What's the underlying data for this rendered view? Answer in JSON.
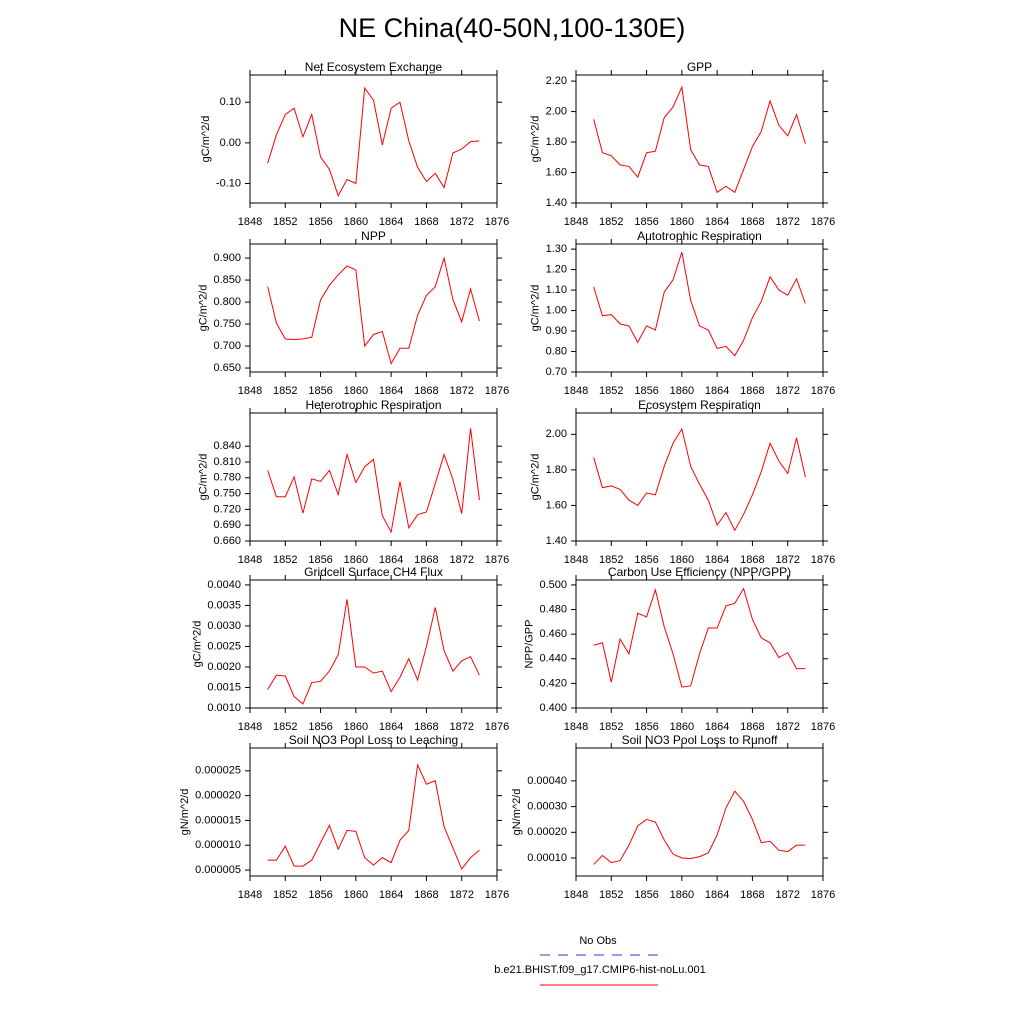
{
  "title": "NE China(40-50N,100-130E)",
  "legend": [
    {
      "label": "No Obs",
      "color": "#3333cc",
      "dashed": true
    },
    {
      "label": "b.e21.BHIST.f09_g17.CMIP6-hist-noLu.001",
      "color": "#ff0000",
      "dashed": false
    }
  ],
  "chart_data": [
    {
      "type": "line",
      "title": "Net Ecosystem Exchange",
      "ylabel": "gC/m^2/d",
      "color": "#ff0000",
      "x": [
        1850,
        1851,
        1852,
        1853,
        1854,
        1855,
        1856,
        1857,
        1858,
        1859,
        1860,
        1861,
        1862,
        1863,
        1864,
        1865,
        1866,
        1867,
        1868,
        1869,
        1870,
        1871,
        1872,
        1873,
        1874
      ],
      "values": [
        -0.05,
        0.02,
        0.07,
        0.085,
        0.015,
        0.07,
        -0.035,
        -0.065,
        -0.13,
        -0.09,
        -0.1,
        0.135,
        0.105,
        -0.005,
        0.085,
        0.1,
        0.005,
        -0.06,
        -0.095,
        -0.075,
        -0.11,
        -0.025,
        -0.015,
        0.003,
        0.005
      ],
      "xlim": [
        1848,
        1876
      ],
      "xticks": [
        1848,
        1852,
        1856,
        1860,
        1864,
        1868,
        1872,
        1876
      ],
      "ylim": [
        -0.148,
        0.167
      ],
      "yticks": [
        {
          "value": -0.1,
          "label": "-0.10"
        },
        {
          "value": 0,
          "label": "0.00"
        },
        {
          "value": 0.1,
          "label": "0.10"
        }
      ]
    },
    {
      "type": "line",
      "title": "GPP",
      "ylabel": "gC/m^2/d",
      "color": "#ff0000",
      "x": [
        1850,
        1851,
        1852,
        1853,
        1854,
        1855,
        1856,
        1857,
        1858,
        1859,
        1860,
        1861,
        1862,
        1863,
        1864,
        1865,
        1866,
        1867,
        1868,
        1869,
        1870,
        1871,
        1872,
        1873,
        1874
      ],
      "values": [
        1.95,
        1.73,
        1.71,
        1.65,
        1.64,
        1.57,
        1.73,
        1.74,
        1.96,
        2.03,
        2.16,
        1.75,
        1.65,
        1.64,
        1.47,
        1.51,
        1.47,
        1.62,
        1.77,
        1.87,
        2.07,
        1.91,
        1.84,
        1.98,
        1.79
      ],
      "xlim": [
        1848,
        1876
      ],
      "xticks": [
        1848,
        1852,
        1856,
        1860,
        1864,
        1868,
        1872,
        1876
      ],
      "ylim": [
        1.4,
        2.24
      ],
      "yticks": [
        {
          "value": 1.4,
          "label": "1.40"
        },
        {
          "value": 1.6,
          "label": "1.60"
        },
        {
          "value": 1.8,
          "label": "1.80"
        },
        {
          "value": 2.0,
          "label": "2.00"
        },
        {
          "value": 2.2,
          "label": "2.20"
        }
      ]
    },
    {
      "type": "line",
      "title": "NPP",
      "ylabel": "gC/m^2/d",
      "color": "#ff0000",
      "x": [
        1850,
        1851,
        1852,
        1853,
        1854,
        1855,
        1856,
        1857,
        1858,
        1859,
        1860,
        1861,
        1862,
        1863,
        1864,
        1865,
        1866,
        1867,
        1868,
        1869,
        1870,
        1871,
        1872,
        1873,
        1874
      ],
      "values": [
        0.835,
        0.752,
        0.716,
        0.715,
        0.716,
        0.72,
        0.805,
        0.838,
        0.862,
        0.882,
        0.873,
        0.7,
        0.726,
        0.733,
        0.66,
        0.695,
        0.695,
        0.77,
        0.815,
        0.835,
        0.9,
        0.806,
        0.755,
        0.83,
        0.757
      ],
      "xlim": [
        1848,
        1876
      ],
      "xticks": [
        1848,
        1852,
        1856,
        1860,
        1864,
        1868,
        1872,
        1876
      ],
      "ylim": [
        0.641,
        0.932
      ],
      "yticks": [
        {
          "value": 0.65,
          "label": "0.650"
        },
        {
          "value": 0.7,
          "label": "0.700"
        },
        {
          "value": 0.75,
          "label": "0.750"
        },
        {
          "value": 0.8,
          "label": "0.800"
        },
        {
          "value": 0.85,
          "label": "0.850"
        },
        {
          "value": 0.9,
          "label": "0.900"
        }
      ]
    },
    {
      "type": "line",
      "title": "Autotrophic Respiration",
      "ylabel": "gC/m^2/d",
      "color": "#ff0000",
      "x": [
        1850,
        1851,
        1852,
        1853,
        1854,
        1855,
        1856,
        1857,
        1858,
        1859,
        1860,
        1861,
        1862,
        1863,
        1864,
        1865,
        1866,
        1867,
        1868,
        1869,
        1870,
        1871,
        1872,
        1873,
        1874
      ],
      "values": [
        1.115,
        0.975,
        0.98,
        0.935,
        0.925,
        0.845,
        0.925,
        0.905,
        1.09,
        1.15,
        1.285,
        1.05,
        0.925,
        0.905,
        0.815,
        0.825,
        0.78,
        0.855,
        0.965,
        1.045,
        1.165,
        1.1,
        1.075,
        1.155,
        1.035
      ],
      "xlim": [
        1848,
        1876
      ],
      "xticks": [
        1848,
        1852,
        1856,
        1860,
        1864,
        1868,
        1872,
        1876
      ],
      "ylim": [
        0.7,
        1.325
      ],
      "yticks": [
        {
          "value": 0.7,
          "label": "0.70"
        },
        {
          "value": 0.8,
          "label": "0.80"
        },
        {
          "value": 0.9,
          "label": "0.90"
        },
        {
          "value": 1.0,
          "label": "1.00"
        },
        {
          "value": 1.1,
          "label": "1.10"
        },
        {
          "value": 1.2,
          "label": "1.20"
        },
        {
          "value": 1.3,
          "label": "1.30"
        }
      ]
    },
    {
      "type": "line",
      "title": "Heterotrophic Respiration",
      "ylabel": "gC/m^2/d",
      "color": "#ff0000",
      "x": [
        1850,
        1851,
        1852,
        1853,
        1854,
        1855,
        1856,
        1857,
        1858,
        1859,
        1860,
        1861,
        1862,
        1863,
        1864,
        1865,
        1866,
        1867,
        1868,
        1869,
        1870,
        1871,
        1872,
        1873,
        1874
      ],
      "values": [
        0.794,
        0.744,
        0.744,
        0.782,
        0.713,
        0.778,
        0.773,
        0.794,
        0.748,
        0.824,
        0.771,
        0.801,
        0.815,
        0.708,
        0.677,
        0.773,
        0.685,
        0.71,
        0.715,
        0.769,
        0.824,
        0.777,
        0.712,
        0.874,
        0.738
      ],
      "xlim": [
        1848,
        1876
      ],
      "xticks": [
        1848,
        1852,
        1856,
        1860,
        1864,
        1868,
        1872,
        1876
      ],
      "ylim": [
        0.66,
        0.903
      ],
      "yticks": [
        {
          "value": 0.66,
          "label": "0.660"
        },
        {
          "value": 0.69,
          "label": "0.690"
        },
        {
          "value": 0.72,
          "label": "0.720"
        },
        {
          "value": 0.75,
          "label": "0.750"
        },
        {
          "value": 0.78,
          "label": "0.780"
        },
        {
          "value": 0.81,
          "label": "0.810"
        },
        {
          "value": 0.84,
          "label": "0.840"
        }
      ]
    },
    {
      "type": "line",
      "title": "Ecosystem Respiration",
      "ylabel": "gC/m^2/d",
      "color": "#ff0000",
      "x": [
        1850,
        1851,
        1852,
        1853,
        1854,
        1855,
        1856,
        1857,
        1858,
        1859,
        1860,
        1861,
        1862,
        1863,
        1864,
        1865,
        1866,
        1867,
        1868,
        1869,
        1870,
        1871,
        1872,
        1873,
        1874
      ],
      "values": [
        1.87,
        1.7,
        1.71,
        1.69,
        1.63,
        1.6,
        1.67,
        1.66,
        1.82,
        1.95,
        2.03,
        1.82,
        1.72,
        1.63,
        1.49,
        1.56,
        1.46,
        1.55,
        1.66,
        1.79,
        1.95,
        1.85,
        1.78,
        1.98,
        1.76
      ],
      "xlim": [
        1848,
        1876
      ],
      "xticks": [
        1848,
        1852,
        1856,
        1860,
        1864,
        1868,
        1872,
        1876
      ],
      "ylim": [
        1.4,
        2.12
      ],
      "yticks": [
        {
          "value": 1.4,
          "label": "1.40"
        },
        {
          "value": 1.6,
          "label": "1.60"
        },
        {
          "value": 1.8,
          "label": "1.80"
        },
        {
          "value": 2.0,
          "label": "2.00"
        }
      ]
    },
    {
      "type": "line",
      "title": "Gridcell Surface CH4 Flux",
      "ylabel": "gC/m^2/d",
      "color": "#ff0000",
      "x": [
        1850,
        1851,
        1852,
        1853,
        1854,
        1855,
        1856,
        1857,
        1858,
        1859,
        1860,
        1861,
        1862,
        1863,
        1864,
        1865,
        1866,
        1867,
        1868,
        1869,
        1870,
        1871,
        1872,
        1873,
        1874
      ],
      "values": [
        0.00145,
        0.0018,
        0.00178,
        0.00128,
        0.0011,
        0.00162,
        0.00165,
        0.0019,
        0.0023,
        0.00365,
        0.002,
        0.002,
        0.00185,
        0.0019,
        0.0014,
        0.00175,
        0.0022,
        0.00168,
        0.0025,
        0.00345,
        0.0024,
        0.0019,
        0.00215,
        0.00225,
        0.0018
      ],
      "xlim": [
        1848,
        1876
      ],
      "xticks": [
        1848,
        1852,
        1856,
        1860,
        1864,
        1868,
        1872,
        1876
      ],
      "ylim": [
        0.001,
        0.00412
      ],
      "yticks": [
        {
          "value": 0.001,
          "label": "0.0010"
        },
        {
          "value": 0.0015,
          "label": "0.0015"
        },
        {
          "value": 0.002,
          "label": "0.0020"
        },
        {
          "value": 0.0025,
          "label": "0.0025"
        },
        {
          "value": 0.003,
          "label": "0.0030"
        },
        {
          "value": 0.0035,
          "label": "0.0035"
        },
        {
          "value": 0.004,
          "label": "0.0040"
        }
      ]
    },
    {
      "type": "line",
      "title": "Carbon Use Efficiency (NPP/GPP)",
      "ylabel": "NPP/GPP",
      "color": "#ff0000",
      "x": [
        1850,
        1851,
        1852,
        1853,
        1854,
        1855,
        1856,
        1857,
        1858,
        1859,
        1860,
        1861,
        1862,
        1863,
        1864,
        1865,
        1866,
        1867,
        1868,
        1869,
        1870,
        1871,
        1872,
        1873,
        1874
      ],
      "values": [
        0.451,
        0.453,
        0.421,
        0.456,
        0.444,
        0.477,
        0.474,
        0.496,
        0.466,
        0.444,
        0.417,
        0.418,
        0.444,
        0.465,
        0.465,
        0.483,
        0.485,
        0.497,
        0.472,
        0.457,
        0.453,
        0.441,
        0.445,
        0.432,
        0.432
      ],
      "xlim": [
        1848,
        1876
      ],
      "xticks": [
        1848,
        1852,
        1856,
        1860,
        1864,
        1868,
        1872,
        1876
      ],
      "ylim": [
        0.4,
        0.504
      ],
      "yticks": [
        {
          "value": 0.4,
          "label": "0.400"
        },
        {
          "value": 0.42,
          "label": "0.420"
        },
        {
          "value": 0.44,
          "label": "0.440"
        },
        {
          "value": 0.46,
          "label": "0.460"
        },
        {
          "value": 0.48,
          "label": "0.480"
        },
        {
          "value": 0.5,
          "label": "0.500"
        }
      ]
    },
    {
      "type": "line",
      "title": "Soil NO3 Pool Loss to Leaching",
      "ylabel": "gN/m^2/d",
      "color": "#ff0000",
      "x": [
        1850,
        1851,
        1852,
        1853,
        1854,
        1855,
        1856,
        1857,
        1858,
        1859,
        1860,
        1861,
        1862,
        1863,
        1864,
        1865,
        1866,
        1867,
        1868,
        1869,
        1870,
        1871,
        1872,
        1873,
        1874
      ],
      "values": [
        7e-06,
        7e-06,
        9.8e-06,
        5.8e-06,
        5.8e-06,
        7e-06,
        1.05e-05,
        1.4e-05,
        9.2e-06,
        1.3e-05,
        1.28e-05,
        7.5e-06,
        6e-06,
        7.5e-06,
        6.5e-06,
        1.1e-05,
        1.3e-05,
        2.62e-05,
        2.23e-05,
        2.3e-05,
        1.37e-05,
        9.5e-06,
        5.2e-06,
        7.5e-06,
        9e-06
      ],
      "xlim": [
        1848,
        1876
      ],
      "xticks": [
        1848,
        1852,
        1856,
        1860,
        1864,
        1868,
        1872,
        1876
      ],
      "ylim": [
        3.8e-06,
        2.96e-05
      ],
      "yticks": [
        5e-06,
        {
          "value": 1e-05,
          "label": "0.000010"
        },
        1.5e-05,
        {
          "value": 2e-05,
          "label": "0.000020"
        },
        2.5e-05
      ]
    },
    {
      "type": "line",
      "title": "Soil NO3 Pool Loss to Runoff",
      "ylabel": "gN/m^2/d",
      "color": "#ff0000",
      "x": [
        1850,
        1851,
        1852,
        1853,
        1854,
        1855,
        1856,
        1857,
        1858,
        1859,
        1860,
        1861,
        1862,
        1863,
        1864,
        1865,
        1866,
        1867,
        1868,
        1869,
        1870,
        1871,
        1872,
        1873,
        1874
      ],
      "values": [
        7.5e-05,
        0.00011,
        8.2e-05,
        9e-05,
        0.00015,
        0.000225,
        0.00025,
        0.00024,
        0.00017,
        0.000115,
        0.0001,
        9.8e-05,
        0.000105,
        0.00012,
        0.00019,
        0.000295,
        0.00036,
        0.00032,
        0.00025,
        0.00016,
        0.000165,
        0.00013,
        0.000125,
        0.00015,
        0.00015
      ],
      "xlim": [
        1848,
        1876
      ],
      "xticks": [
        1848,
        1852,
        1856,
        1860,
        1864,
        1868,
        1872,
        1876
      ],
      "ylim": [
        3e-05,
        0.000528
      ],
      "yticks": [
        {
          "value": 0.0001,
          "label": "0.00010"
        },
        {
          "value": 0.0002,
          "label": "0.00020"
        },
        {
          "value": 0.0003,
          "label": "0.00030"
        },
        {
          "value": 0.0004,
          "label": "0.00040"
        }
      ]
    }
  ]
}
